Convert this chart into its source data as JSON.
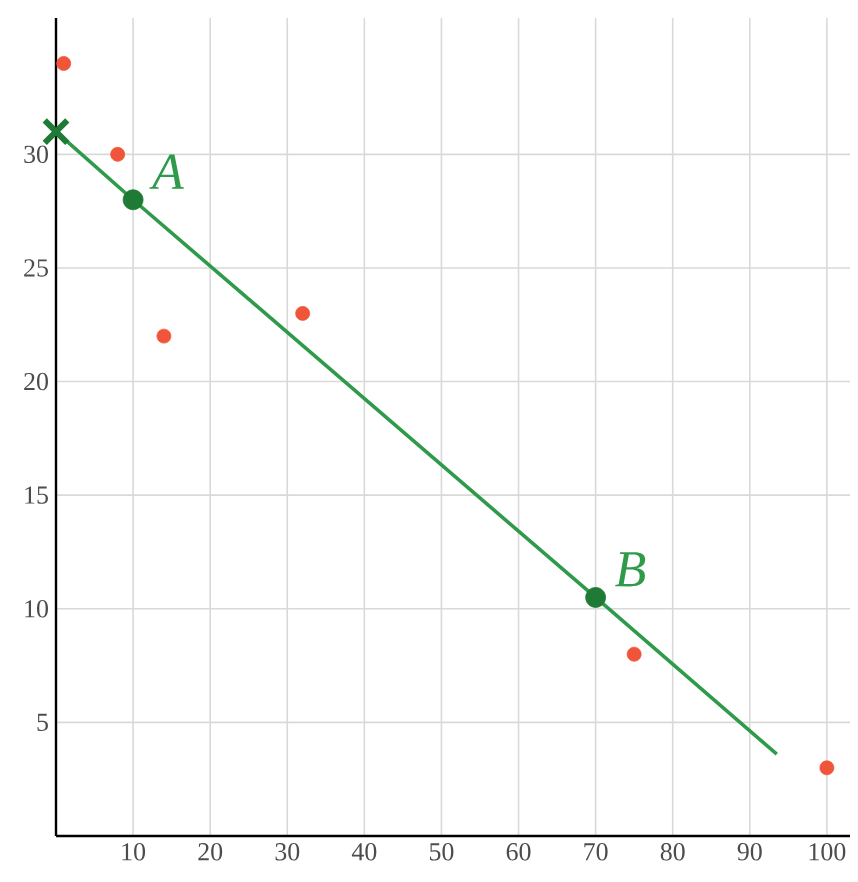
{
  "chart_data": {
    "type": "scatter",
    "series": [
      {
        "color": "#f0553a",
        "marker": "circle",
        "x": [
          1,
          8,
          14,
          32,
          75,
          100
        ],
        "values": [
          34,
          30,
          22,
          23,
          8,
          3
        ]
      },
      {
        "type": "line",
        "color": "#2e9a4a",
        "marker": "none",
        "line_style": "solid",
        "x": [
          0,
          10,
          70,
          93.5
        ],
        "values": [
          31,
          28,
          10.5,
          3.6
        ]
      },
      {
        "color": "#1f7a35",
        "marker": "circle",
        "x": [
          10,
          70
        ],
        "values": [
          28,
          10.5
        ]
      },
      {
        "color": "#1f7a35",
        "marker": "cross",
        "x": [
          0
        ],
        "values": [
          31
        ]
      }
    ],
    "annotations": [
      {
        "text": "A",
        "x": 10,
        "y": 28
      },
      {
        "text": "B",
        "x": 70,
        "y": 10.5
      }
    ],
    "xlim": [
      0,
      103
    ],
    "ylim": [
      0,
      36
    ],
    "xticks": [
      10,
      20,
      30,
      40,
      50,
      60,
      70,
      80,
      90,
      100
    ],
    "yticks": [
      5,
      10,
      15,
      20,
      25,
      30
    ],
    "grid": true
  }
}
